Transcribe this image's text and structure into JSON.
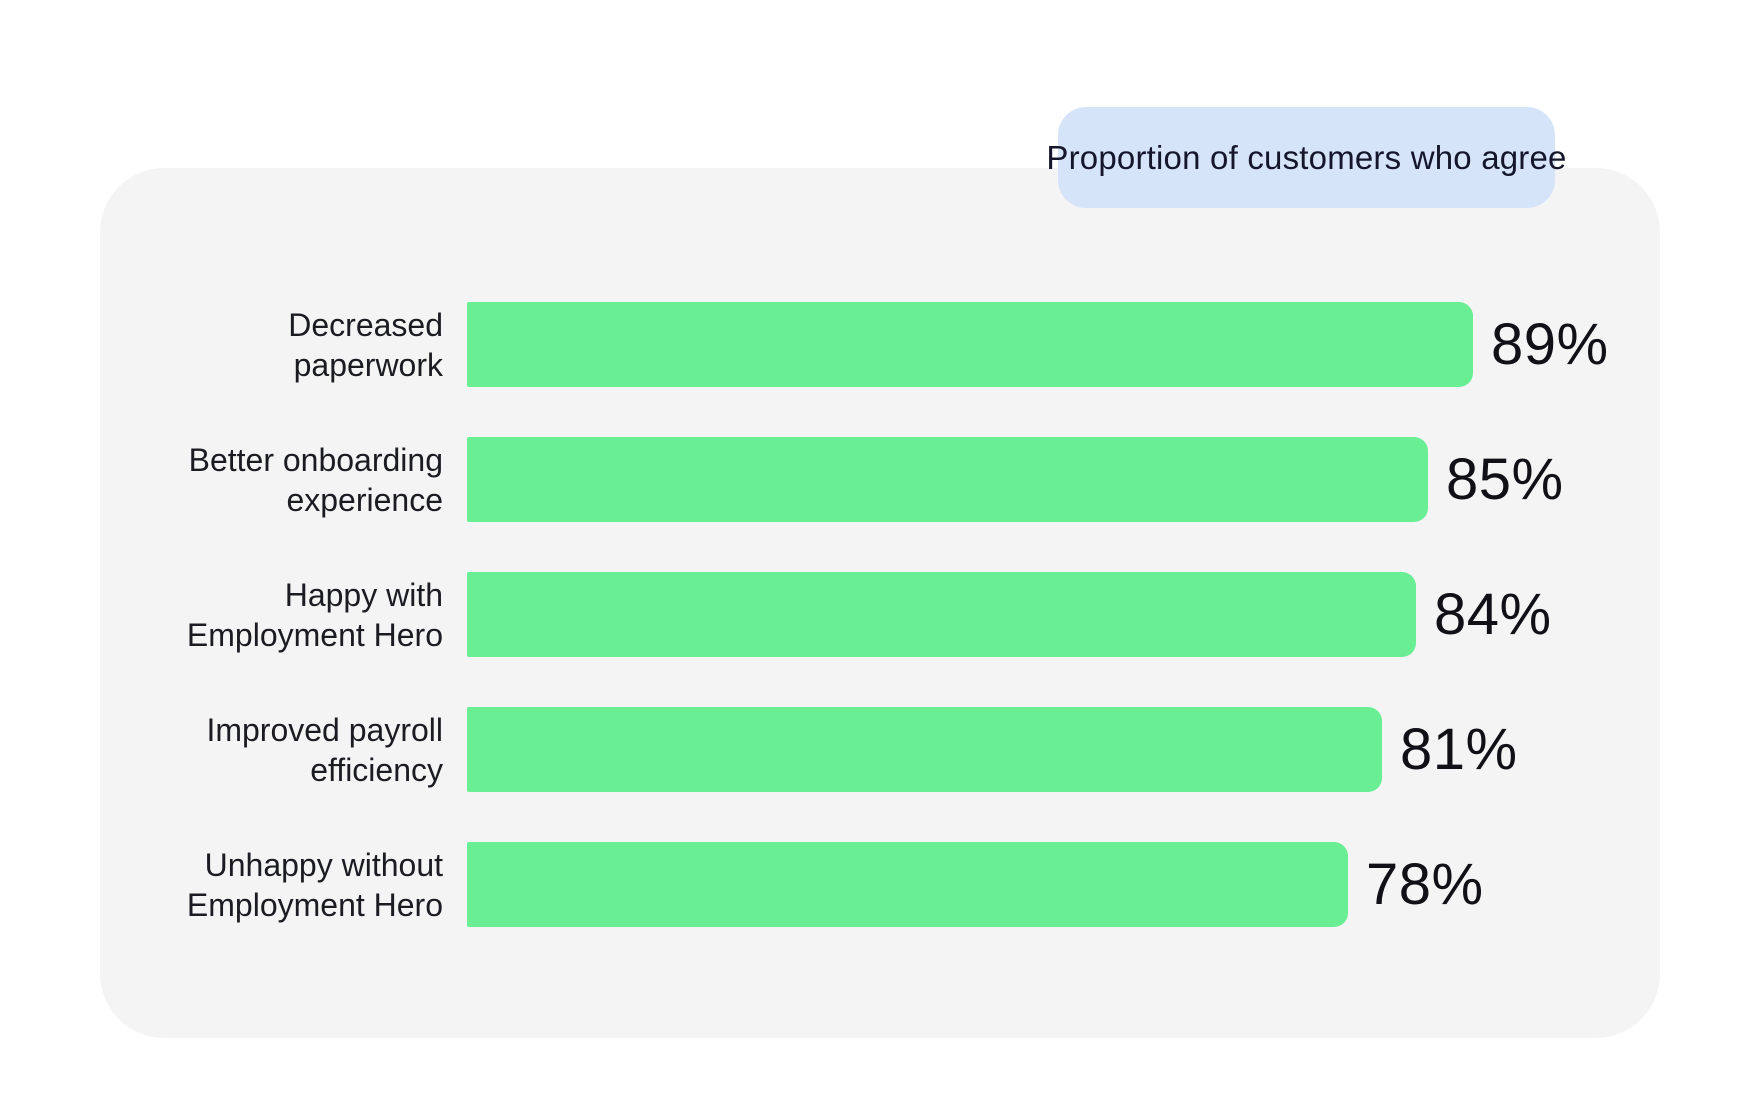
{
  "page": {
    "background": "#ffffff"
  },
  "card": {
    "bg": "#f4f4f5"
  },
  "badge": {
    "label": "Proportion of customers who agree",
    "bg": "#d6e4fa",
    "text_color": "#15162b"
  },
  "chart_data": {
    "type": "bar",
    "orientation": "horizontal",
    "title": "Proportion of customers who agree",
    "categories": [
      "Decreased paperwork",
      "Better onboarding experience",
      "Happy with Employment Hero",
      "Improved payroll efficiency",
      "Unhappy without Employment Hero"
    ],
    "category_lines": [
      [
        "Decreased",
        "paperwork"
      ],
      [
        "Better onboarding",
        "experience"
      ],
      [
        "Happy with",
        "Employment Hero"
      ],
      [
        "Improved payroll",
        "efficiency"
      ],
      [
        "Unhappy without",
        "Employment Hero"
      ]
    ],
    "values": [
      89,
      85,
      84,
      81,
      78
    ],
    "value_labels": [
      "89%",
      "85%",
      "84%",
      "81%",
      "78%"
    ],
    "value_suffix": "%",
    "xlim": [
      0,
      100
    ],
    "grid": false,
    "legend": false,
    "bar_color": "#69ee94",
    "label_color": "#1b1c22",
    "value_color": "#101016"
  }
}
